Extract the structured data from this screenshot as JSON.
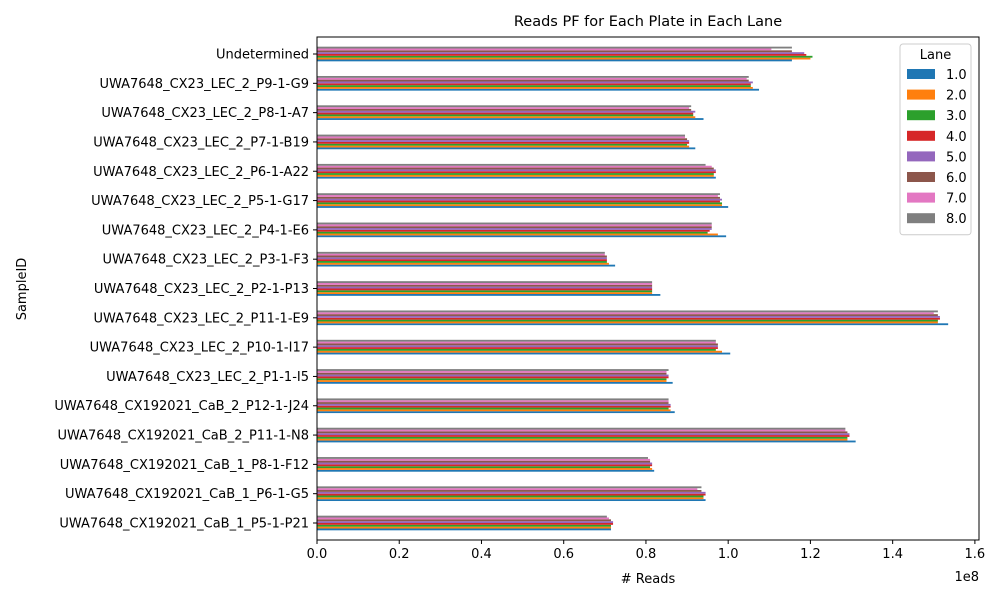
{
  "chart_data": {
    "type": "bar",
    "orientation": "horizontal",
    "title": "Reads PF for Each Plate in Each Lane",
    "xlabel": "# Reads",
    "ylabel": "SampleID",
    "x_scale_label": "1e8",
    "xlim": [
      0,
      1.61
    ],
    "x_ticks": [
      0.0,
      0.2,
      0.4,
      0.6,
      0.8,
      1.0,
      1.2,
      1.4,
      1.6
    ],
    "x_tick_labels": [
      "0.0",
      "0.2",
      "0.4",
      "0.6",
      "0.8",
      "1.0",
      "1.2",
      "1.4",
      "1.6"
    ],
    "categories": [
      "Undetermined",
      "UWA7648_CX23_LEC_2_P9-1-G9",
      "UWA7648_CX23_LEC_2_P8-1-A7",
      "UWA7648_CX23_LEC_2_P7-1-B19",
      "UWA7648_CX23_LEC_2_P6-1-A22",
      "UWA7648_CX23_LEC_2_P5-1-G17",
      "UWA7648_CX23_LEC_2_P4-1-E6",
      "UWA7648_CX23_LEC_2_P3-1-F3",
      "UWA7648_CX23_LEC_2_P2-1-P13",
      "UWA7648_CX23_LEC_2_P11-1-E9",
      "UWA7648_CX23_LEC_2_P10-1-I17",
      "UWA7648_CX23_LEC_2_P1-1-I5",
      "UWA7648_CX192021_CaB_2_P12-1-J24",
      "UWA7648_CX192021_CaB_2_P11-1-N8",
      "UWA7648_CX192021_CaB_1_P8-1-F12",
      "UWA7648_CX192021_CaB_1_P6-1-G5",
      "UWA7648_CX192021_CaB_1_P5-1-P21"
    ],
    "legend": {
      "title": "Lane",
      "placement": "top-right"
    },
    "grid": false,
    "series": [
      {
        "name": "1.0",
        "color": "#1f77b4",
        "values": [
          1.155,
          1.075,
          0.94,
          0.92,
          0.97,
          1.0,
          0.995,
          0.725,
          0.835,
          1.535,
          1.005,
          0.865,
          0.87,
          1.31,
          0.82,
          0.945,
          0.715
        ]
      },
      {
        "name": "2.0",
        "color": "#ff7f0e",
        "values": [
          1.2,
          1.06,
          0.92,
          0.905,
          0.965,
          0.985,
          0.975,
          0.71,
          0.815,
          1.51,
          0.985,
          0.85,
          0.86,
          1.29,
          0.815,
          0.94,
          0.715
        ]
      },
      {
        "name": "3.0",
        "color": "#2ca02c",
        "values": [
          1.205,
          1.055,
          0.915,
          0.9,
          0.965,
          0.985,
          0.95,
          0.705,
          0.815,
          1.51,
          0.97,
          0.85,
          0.855,
          1.29,
          0.81,
          0.94,
          0.715
        ]
      },
      {
        "name": "4.0",
        "color": "#d62728",
        "values": [
          1.19,
          1.055,
          0.915,
          0.905,
          0.97,
          0.98,
          0.955,
          0.705,
          0.815,
          1.515,
          0.975,
          0.855,
          0.86,
          1.295,
          0.815,
          0.945,
          0.72
        ]
      },
      {
        "name": "5.0",
        "color": "#9467bd",
        "values": [
          1.185,
          1.06,
          0.92,
          0.905,
          0.97,
          0.985,
          0.96,
          0.705,
          0.815,
          1.515,
          0.975,
          0.855,
          0.86,
          1.295,
          0.815,
          0.945,
          0.72
        ]
      },
      {
        "name": "6.0",
        "color": "#8c564b",
        "values": [
          1.155,
          1.05,
          0.91,
          0.9,
          0.965,
          0.98,
          0.96,
          0.705,
          0.815,
          1.51,
          0.975,
          0.85,
          0.855,
          1.29,
          0.81,
          0.935,
          0.715
        ]
      },
      {
        "name": "7.0",
        "color": "#e377c2",
        "values": [
          1.105,
          1.045,
          0.905,
          0.895,
          0.96,
          0.975,
          0.96,
          0.7,
          0.815,
          1.5,
          0.97,
          0.85,
          0.855,
          1.285,
          0.81,
          0.925,
          0.71
        ]
      },
      {
        "name": "8.0",
        "color": "#7f7f7f",
        "values": [
          1.155,
          1.05,
          0.91,
          0.895,
          0.945,
          0.98,
          0.96,
          0.7,
          0.815,
          1.51,
          0.97,
          0.855,
          0.855,
          1.285,
          0.805,
          0.935,
          0.705
        ]
      }
    ]
  }
}
